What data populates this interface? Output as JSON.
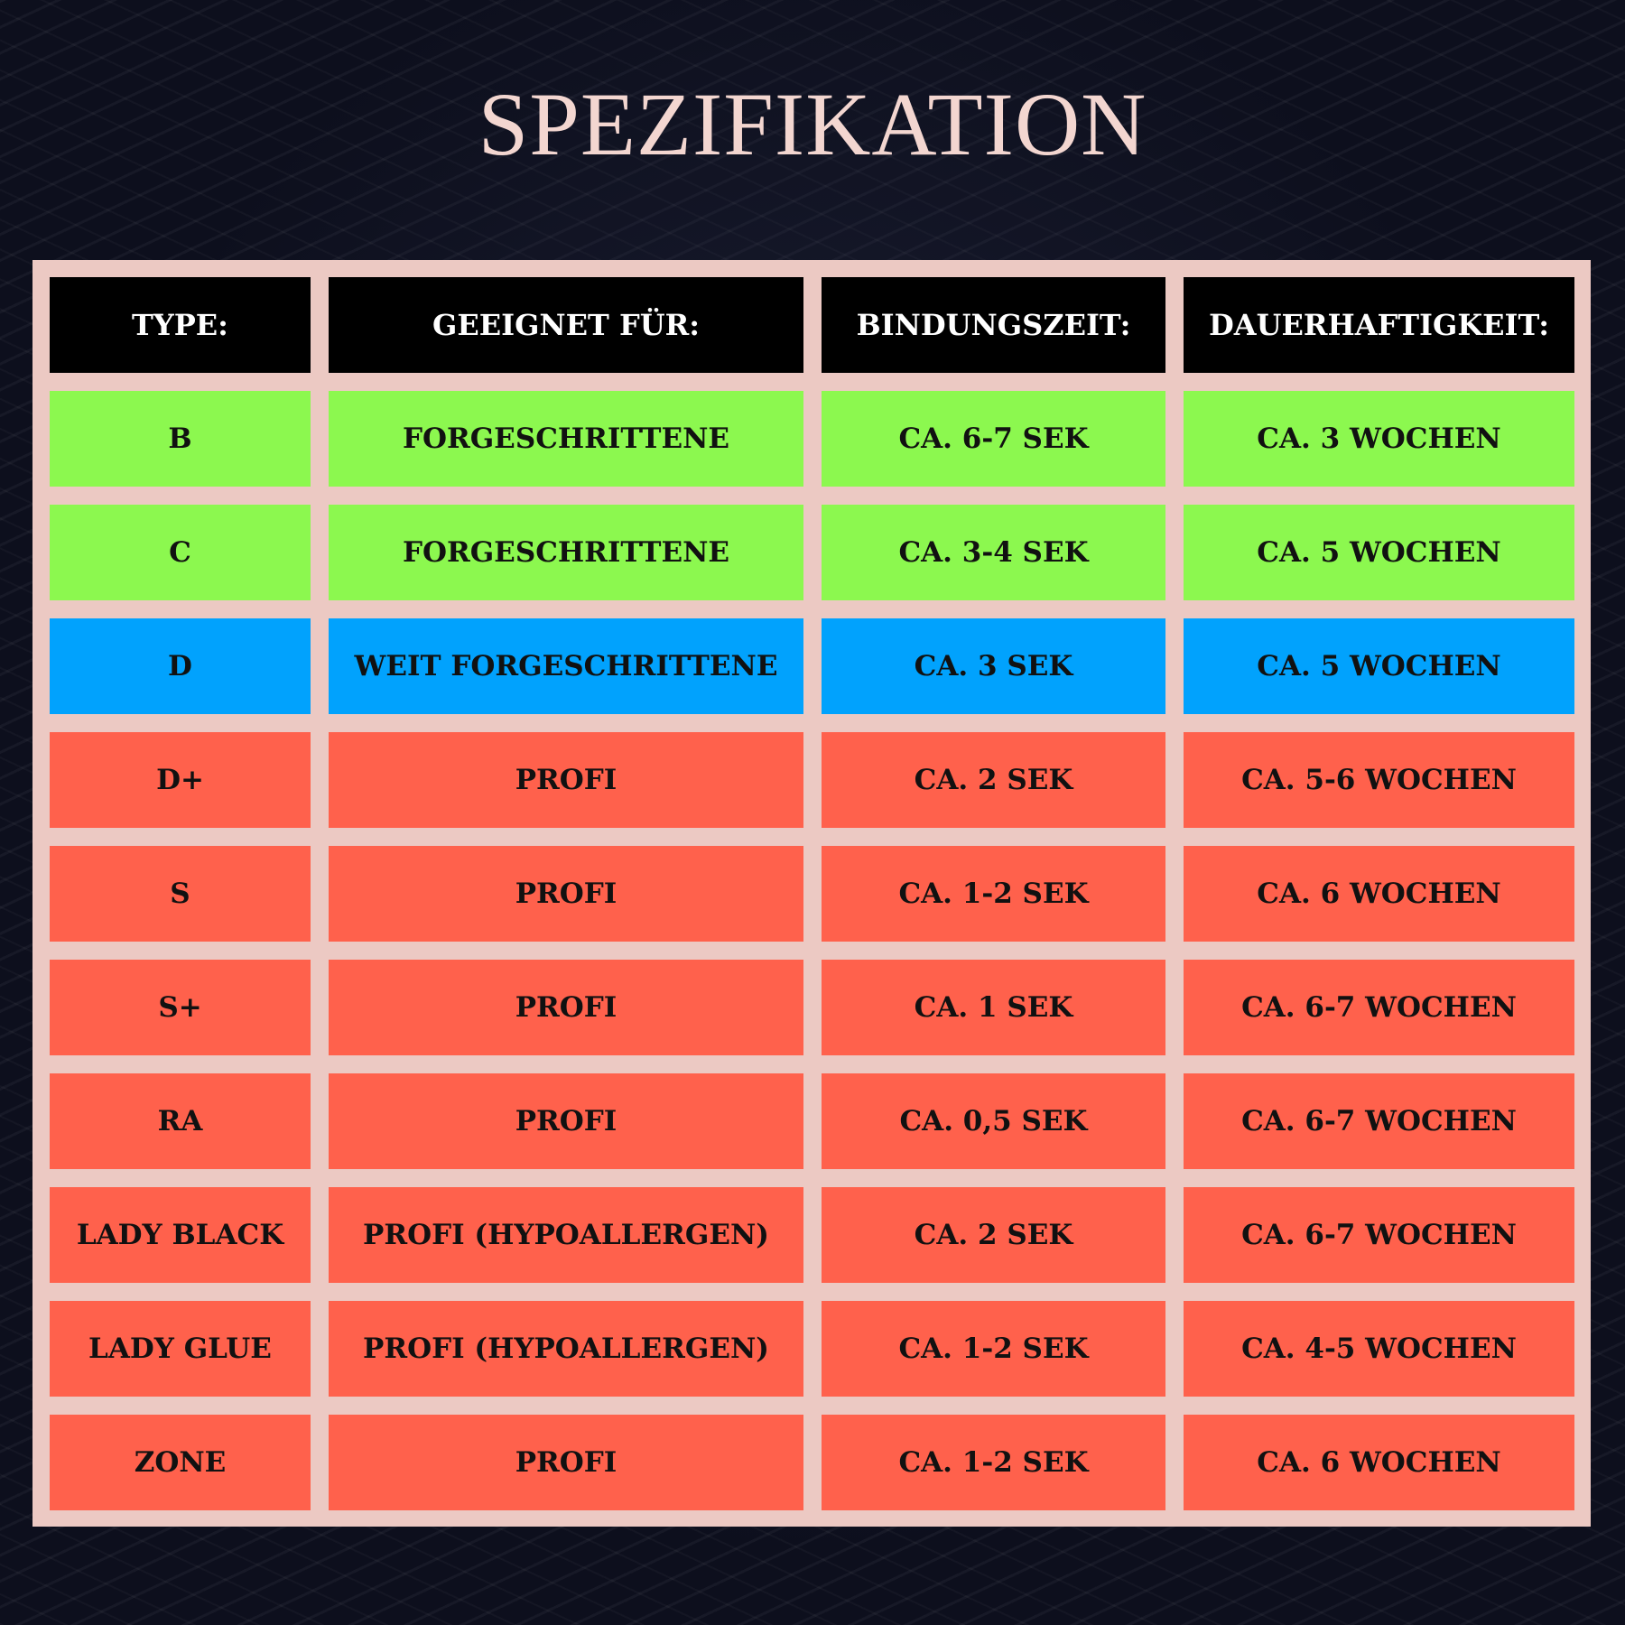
{
  "title": "SPEZIFIKATION",
  "colors": {
    "header": "#000000",
    "green": "#8cf84f",
    "blue": "#01a2fd",
    "red": "#ff614c",
    "frame": "#ecc9c3"
  },
  "table": {
    "headers": [
      "TYPE:",
      "GEEIGNET FÜR:",
      "BINDUNGSZEIT:",
      "DAUERHAFTIGKEIT:"
    ],
    "rows": [
      {
        "color": "#8cf84f",
        "cells": [
          "B",
          "FORGESCHRITTENE",
          "CA. 6-7 SEK",
          "CA. 3 WOCHEN"
        ]
      },
      {
        "color": "#8cf84f",
        "cells": [
          "C",
          "FORGESCHRITTENE",
          "CA. 3-4 SEK",
          "CA. 5 WOCHEN"
        ]
      },
      {
        "color": "#01a2fd",
        "cells": [
          "D",
          "WEIT FORGESCHRITTENE",
          "CA. 3 SEK",
          "CA. 5 WOCHEN"
        ]
      },
      {
        "color": "#ff614c",
        "cells": [
          "D+",
          "PROFI",
          "CA. 2 SEK",
          "CA. 5-6 WOCHEN"
        ]
      },
      {
        "color": "#ff614c",
        "cells": [
          "S",
          "PROFI",
          "CA. 1-2 SEK",
          "CA. 6 WOCHEN"
        ]
      },
      {
        "color": "#ff614c",
        "cells": [
          "S+",
          "PROFI",
          "CA. 1 SEK",
          "CA. 6-7 WOCHEN"
        ]
      },
      {
        "color": "#ff614c",
        "cells": [
          "RA",
          "PROFI",
          "CA. 0,5 SEK",
          "CA. 6-7 WOCHEN"
        ]
      },
      {
        "color": "#ff614c",
        "cells": [
          "LADY BLACK",
          "PROFI (HYPOALLERGEN)",
          "CA. 2 SEK",
          "CA. 6-7 WOCHEN"
        ]
      },
      {
        "color": "#ff614c",
        "cells": [
          "LADY GLUE",
          "PROFI (HYPOALLERGEN)",
          "CA. 1-2 SEK",
          "CA. 4-5 WOCHEN"
        ]
      },
      {
        "color": "#ff614c",
        "cells": [
          "ZONE",
          "PROFI",
          "CA. 1-2 SEK",
          "CA. 6 WOCHEN"
        ]
      }
    ]
  }
}
